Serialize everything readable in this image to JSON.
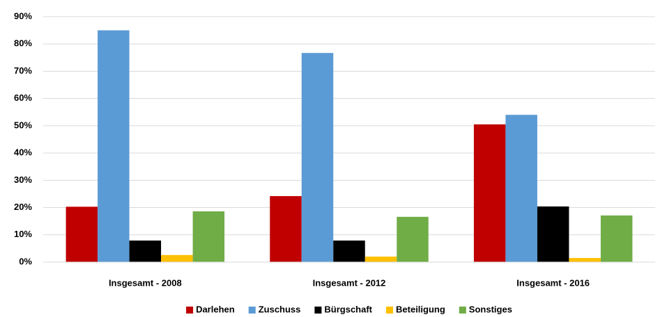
{
  "chart_data": {
    "type": "bar",
    "categories": [
      "Insgesamt - 2008",
      "Insgesamt - 2012",
      "Insgesamt - 2016"
    ],
    "series": [
      {
        "name": "Darlehen",
        "color": "#c00000",
        "values": [
          20.3,
          24.2,
          50.5
        ]
      },
      {
        "name": "Zuschuss",
        "color": "#5b9bd5",
        "values": [
          85,
          76.7,
          54
        ]
      },
      {
        "name": "Bürgschaft",
        "color": "#000000",
        "values": [
          7.9,
          7.9,
          20.4
        ]
      },
      {
        "name": "Beteiligung",
        "color": "#ffc000",
        "values": [
          2.6,
          2,
          1.5
        ]
      },
      {
        "name": "Sonstiges",
        "color": "#70ad47",
        "values": [
          18.6,
          16.6,
          17.1
        ]
      }
    ],
    "ylim": [
      0,
      90
    ],
    "yticks": [
      {
        "value": 0,
        "label": "0%"
      },
      {
        "value": 10,
        "label": "10%"
      },
      {
        "value": 20,
        "label": "20%"
      },
      {
        "value": 30,
        "label": "30%"
      },
      {
        "value": 40,
        "label": "40%"
      },
      {
        "value": 50,
        "label": "50%"
      },
      {
        "value": 60,
        "label": "60%"
      },
      {
        "value": 70,
        "label": "70%"
      },
      {
        "value": 80,
        "label": "80%"
      },
      {
        "value": 90,
        "label": "90%"
      }
    ],
    "grid": true,
    "legend": "bottom"
  }
}
